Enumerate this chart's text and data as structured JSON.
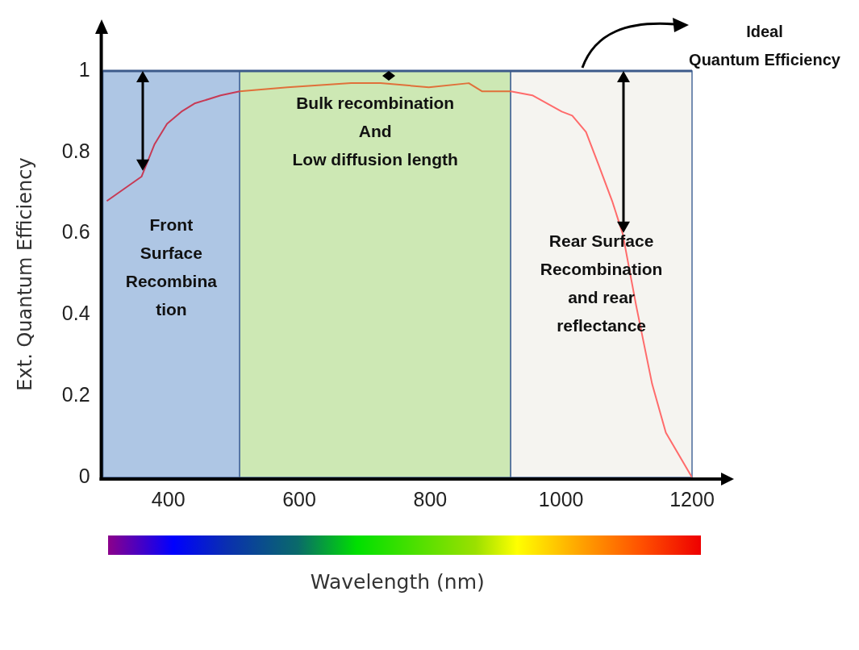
{
  "chart_data": {
    "type": "line",
    "ylabel": "Ext. Quantum Efficiency",
    "xlabel": "Wavelength (nm)",
    "xlim": [
      300,
      1200
    ],
    "xticks": [
      400,
      600,
      800,
      1000,
      1200
    ],
    "ylim": [
      0,
      1
    ],
    "yticks": [
      0,
      0.2,
      0.4,
      0.6,
      0.8,
      1
    ],
    "grid": false,
    "legend": false,
    "marker": "none",
    "line_style": "solid",
    "series": [
      {
        "color": "#c73a55",
        "x": [
          306,
          359,
          379,
          398,
          420,
          440,
          480,
          509
        ],
        "values": [
          0.68,
          0.74,
          0.82,
          0.87,
          0.9,
          0.92,
          0.94,
          0.95
        ]
      },
      {
        "color": "#e0703a",
        "x": [
          509,
          582,
          679,
          724,
          798,
          859,
          879,
          923
        ],
        "values": [
          0.95,
          0.96,
          0.97,
          0.97,
          0.96,
          0.97,
          0.95,
          0.95
        ]
      },
      {
        "color": "#ff6b6b",
        "x": [
          923,
          956,
          1001,
          1017,
          1038,
          1057,
          1078,
          1094,
          1115,
          1139,
          1160,
          1200
        ],
        "values": [
          0.95,
          0.94,
          0.9,
          0.89,
          0.85,
          0.77,
          0.68,
          0.6,
          0.42,
          0.23,
          0.11,
          0
        ]
      }
    ],
    "bands": [
      {
        "axis": "x",
        "from": 300,
        "to": 509,
        "label": "Front\nSurface\nRecombina\ntion",
        "color": "#aec6e4"
      },
      {
        "axis": "x",
        "from": 509,
        "to": 923,
        "label": "Bulk recombination\nAnd\nLow diffusion length",
        "color": "#cde8b4"
      },
      {
        "axis": "x",
        "from": 923,
        "to": 1200,
        "label": "Rear Surface\nRecombination\nand rear\nreflectance",
        "color": "#f5f4f0"
      }
    ],
    "ref_lines": [
      {
        "axis": "y",
        "value": 1,
        "label": "Ideal\nQuantum Efficiency",
        "color": "#3c5a8a"
      }
    ]
  }
}
